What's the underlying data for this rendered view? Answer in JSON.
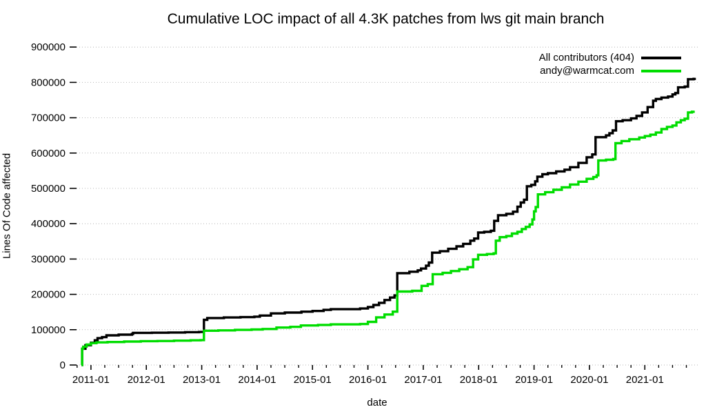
{
  "chart_data": {
    "type": "line",
    "title": "Cumulative LOC impact of all 4.3K patches from lws git main branch",
    "xlabel": "date",
    "ylabel": "Lines Of Code affected",
    "ylim": [
      0,
      900000
    ],
    "x_range_years": [
      2010.69,
      2021.955
    ],
    "grid": "horizontal-dotted",
    "legend_position": "top-right",
    "y_tick_values": [
      0,
      100000,
      200000,
      300000,
      400000,
      500000,
      600000,
      700000,
      800000,
      900000
    ],
    "y_tick_labels": [
      "0",
      "100000",
      "200000",
      "300000",
      "400000",
      "500000",
      "600000",
      "700000",
      "800000",
      "900000"
    ],
    "x_tick_years": [
      2011,
      2012,
      2013,
      2014,
      2015,
      2016,
      2017,
      2018,
      2019,
      2020,
      2021
    ],
    "x_tick_labels": [
      "2011-01",
      "2012-01",
      "2013-01",
      "2014-01",
      "2015-01",
      "2016-01",
      "2017-01",
      "2018-01",
      "2019-01",
      "2020-01",
      "2021-01"
    ],
    "x_minor_tick_step_years": 0.25,
    "series": [
      {
        "name": "All contributors (404)",
        "color": "#000000",
        "interpolation": "step-after",
        "points": [
          [
            2010.83,
            0
          ],
          [
            2010.84,
            46000
          ],
          [
            2010.9,
            56000
          ],
          [
            2011.0,
            63000
          ],
          [
            2011.07,
            70000
          ],
          [
            2011.12,
            76000
          ],
          [
            2011.2,
            79000
          ],
          [
            2011.28,
            84000
          ],
          [
            2011.5,
            86000
          ],
          [
            2011.74,
            88000
          ],
          [
            2011.76,
            91000
          ],
          [
            2012.1,
            91500
          ],
          [
            2012.4,
            92000
          ],
          [
            2012.7,
            93000
          ],
          [
            2012.95,
            93500
          ],
          [
            2013.04,
            128000
          ],
          [
            2013.1,
            133000
          ],
          [
            2013.4,
            134500
          ],
          [
            2013.7,
            135500
          ],
          [
            2013.95,
            137000
          ],
          [
            2014.05,
            140000
          ],
          [
            2014.25,
            146000
          ],
          [
            2014.5,
            148500
          ],
          [
            2014.8,
            151000
          ],
          [
            2015.0,
            153000
          ],
          [
            2015.2,
            156000
          ],
          [
            2015.33,
            158000
          ],
          [
            2015.86,
            160000
          ],
          [
            2016.0,
            164000
          ],
          [
            2016.1,
            170000
          ],
          [
            2016.2,
            176000
          ],
          [
            2016.3,
            184000
          ],
          [
            2016.4,
            191000
          ],
          [
            2016.48,
            197000
          ],
          [
            2016.53,
            260000
          ],
          [
            2016.75,
            264000
          ],
          [
            2016.9,
            268000
          ],
          [
            2016.96,
            273000
          ],
          [
            2017.05,
            281000
          ],
          [
            2017.1,
            290000
          ],
          [
            2017.16,
            318000
          ],
          [
            2017.3,
            322000
          ],
          [
            2017.45,
            329000
          ],
          [
            2017.6,
            336000
          ],
          [
            2017.72,
            343000
          ],
          [
            2017.85,
            352000
          ],
          [
            2017.92,
            358000
          ],
          [
            2017.99,
            375000
          ],
          [
            2018.1,
            377000
          ],
          [
            2018.22,
            380000
          ],
          [
            2018.28,
            408000
          ],
          [
            2018.35,
            424000
          ],
          [
            2018.5,
            428000
          ],
          [
            2018.62,
            434000
          ],
          [
            2018.7,
            448000
          ],
          [
            2018.76,
            460000
          ],
          [
            2018.82,
            468000
          ],
          [
            2018.87,
            506000
          ],
          [
            2018.95,
            510000
          ],
          [
            2019.02,
            520000
          ],
          [
            2019.06,
            533000
          ],
          [
            2019.15,
            540000
          ],
          [
            2019.25,
            543000
          ],
          [
            2019.4,
            548000
          ],
          [
            2019.55,
            553000
          ],
          [
            2019.65,
            560000
          ],
          [
            2019.8,
            572000
          ],
          [
            2019.95,
            588000
          ],
          [
            2020.05,
            596000
          ],
          [
            2020.11,
            645000
          ],
          [
            2020.3,
            650000
          ],
          [
            2020.36,
            656000
          ],
          [
            2020.42,
            664000
          ],
          [
            2020.48,
            690000
          ],
          [
            2020.6,
            693000
          ],
          [
            2020.75,
            698000
          ],
          [
            2020.85,
            705000
          ],
          [
            2020.95,
            715000
          ],
          [
            2021.05,
            730000
          ],
          [
            2021.15,
            748000
          ],
          [
            2021.2,
            753000
          ],
          [
            2021.3,
            757000
          ],
          [
            2021.42,
            760000
          ],
          [
            2021.5,
            766000
          ],
          [
            2021.55,
            770000
          ],
          [
            2021.6,
            786000
          ],
          [
            2021.72,
            788000
          ],
          [
            2021.78,
            809000
          ],
          [
            2021.88,
            810000
          ],
          [
            2021.9,
            813000
          ]
        ]
      },
      {
        "name": "andy@warmcat.com",
        "color": "#00dd00",
        "interpolation": "step-after",
        "points": [
          [
            2010.83,
            0
          ],
          [
            2010.84,
            46000
          ],
          [
            2010.86,
            52000
          ],
          [
            2010.92,
            58000
          ],
          [
            2011.0,
            62000
          ],
          [
            2011.1,
            64000
          ],
          [
            2011.3,
            65000
          ],
          [
            2011.6,
            66500
          ],
          [
            2011.9,
            67500
          ],
          [
            2012.2,
            68000
          ],
          [
            2012.5,
            69000
          ],
          [
            2012.8,
            70000
          ],
          [
            2012.98,
            70500
          ],
          [
            2013.04,
            97000
          ],
          [
            2013.3,
            98000
          ],
          [
            2013.6,
            99500
          ],
          [
            2013.9,
            100500
          ],
          [
            2014.1,
            102000
          ],
          [
            2014.35,
            106000
          ],
          [
            2014.6,
            108000
          ],
          [
            2014.79,
            112000
          ],
          [
            2015.1,
            113500
          ],
          [
            2015.33,
            115000
          ],
          [
            2015.86,
            116000
          ],
          [
            2016.0,
            122000
          ],
          [
            2016.15,
            135000
          ],
          [
            2016.3,
            143000
          ],
          [
            2016.45,
            151000
          ],
          [
            2016.53,
            208000
          ],
          [
            2016.8,
            210000
          ],
          [
            2016.97,
            224000
          ],
          [
            2017.08,
            229000
          ],
          [
            2017.17,
            257000
          ],
          [
            2017.35,
            261000
          ],
          [
            2017.5,
            266000
          ],
          [
            2017.65,
            271000
          ],
          [
            2017.8,
            277000
          ],
          [
            2017.9,
            299000
          ],
          [
            2017.99,
            312000
          ],
          [
            2018.15,
            314000
          ],
          [
            2018.27,
            316000
          ],
          [
            2018.31,
            352000
          ],
          [
            2018.38,
            362000
          ],
          [
            2018.5,
            365000
          ],
          [
            2018.6,
            372000
          ],
          [
            2018.7,
            377000
          ],
          [
            2018.78,
            385000
          ],
          [
            2018.85,
            391000
          ],
          [
            2018.92,
            398000
          ],
          [
            2018.97,
            412000
          ],
          [
            2019.0,
            435000
          ],
          [
            2019.03,
            447000
          ],
          [
            2019.07,
            483000
          ],
          [
            2019.2,
            489000
          ],
          [
            2019.35,
            496000
          ],
          [
            2019.5,
            503000
          ],
          [
            2019.65,
            511000
          ],
          [
            2019.8,
            519000
          ],
          [
            2019.95,
            527000
          ],
          [
            2020.07,
            532000
          ],
          [
            2020.13,
            537000
          ],
          [
            2020.16,
            579000
          ],
          [
            2020.3,
            581000
          ],
          [
            2020.43,
            583000
          ],
          [
            2020.47,
            628000
          ],
          [
            2020.58,
            634000
          ],
          [
            2020.72,
            639000
          ],
          [
            2020.9,
            644000
          ],
          [
            2021.0,
            648000
          ],
          [
            2021.1,
            652000
          ],
          [
            2021.2,
            658000
          ],
          [
            2021.3,
            668000
          ],
          [
            2021.4,
            674000
          ],
          [
            2021.5,
            678000
          ],
          [
            2021.57,
            687000
          ],
          [
            2021.65,
            693000
          ],
          [
            2021.72,
            697000
          ],
          [
            2021.78,
            715000
          ],
          [
            2021.85,
            717000
          ],
          [
            2021.88,
            720000
          ]
        ]
      }
    ]
  },
  "style_colors": {
    "gridline": "#b4b4b4",
    "tick": "#000000",
    "background": "#ffffff"
  }
}
